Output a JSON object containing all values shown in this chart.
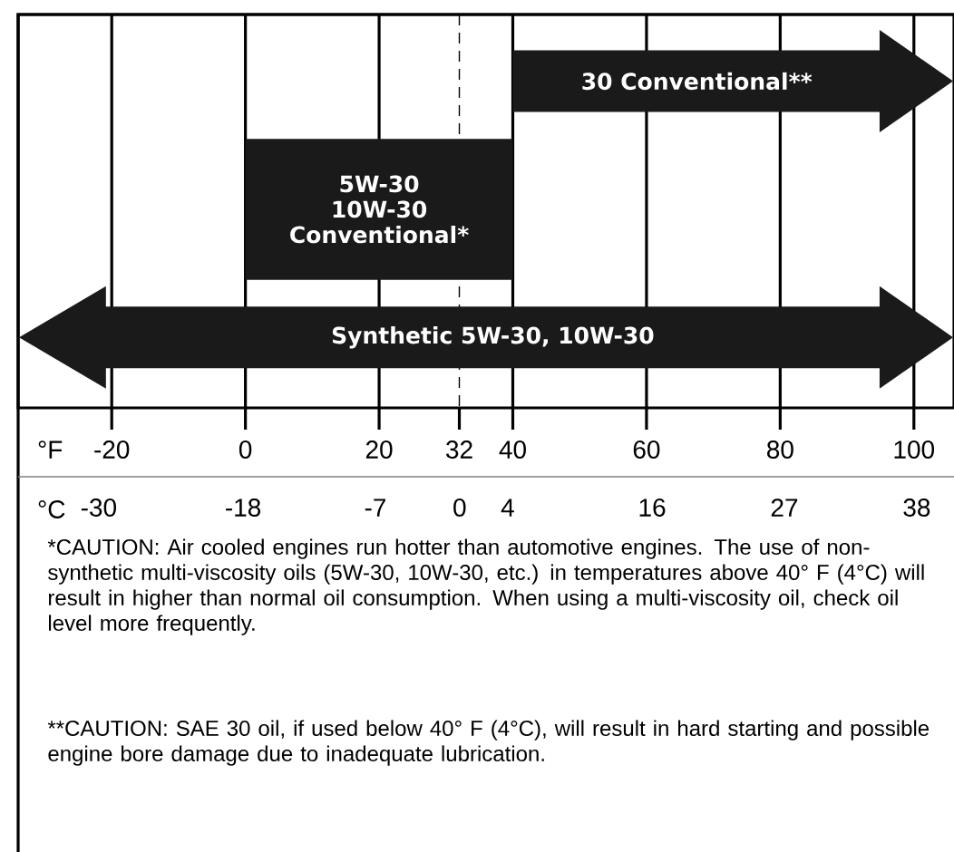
{
  "chart_data": {
    "type": "bar",
    "orientation": "horizontal",
    "categories": [
      "30 Conventional**",
      "5W-30 10W-30 Conventional*",
      "Synthetic 5W-30, 10W-30"
    ],
    "base": [
      40,
      0,
      -21
    ],
    "values": [
      55,
      40,
      116
    ],
    "color": "#1a1a1a",
    "xlim": [
      -34,
      106
    ],
    "xticks": [
      -20,
      0,
      20,
      32,
      40,
      60,
      80,
      100
    ],
    "xlabel": "°F",
    "x2lim": [
      -36.7,
      41.1
    ],
    "x2ticks": [
      -30,
      -18,
      -7,
      0,
      4,
      16,
      27,
      38
    ],
    "x2label": "°C",
    "grid": "x",
    "ref_lines": [
      {
        "axis": "x",
        "value": 32,
        "line_style": "dashed"
      }
    ],
    "annotations": [
      "*CAUTION: Air cooled engines run hotter than automotive engines. The use of non-synthetic multi-viscosity oils (5W-30, 10W-30, etc.) in temperatures above 40° F (4°C) will result in higher than normal oil consumption.  When using a multi-viscosity oil, check oil level more frequently.",
      "**CAUTION: SAE 30 oil, if used below 40° F (4°C), will result in hard starting and possible engine bore damage due to inadequate lubrication."
    ]
  }
}
